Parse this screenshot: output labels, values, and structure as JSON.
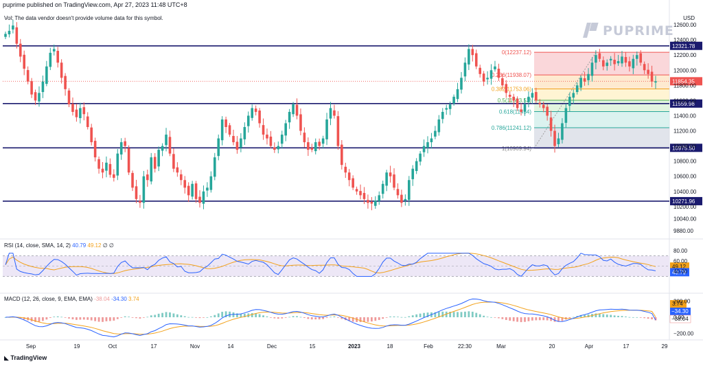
{
  "header": {
    "published": "puprime published on TradingView.com, Apr 27, 2023 11:48 UTC+8"
  },
  "volume_note": "Vol: The data vendor doesn't provide volume data for this symbol.",
  "currency": "USD",
  "brand": {
    "watermark": "PUPRIME",
    "footer": "TradingView"
  },
  "rsi_label": {
    "text": "RSI (14, close, SMA, 14, 2)",
    "rsi": "40.79",
    "sma": "49.12",
    "extra": "∅ ∅"
  },
  "macd_label": {
    "text": "MACD (12, 26, close, 9, EMA, EMA)",
    "hist": "-38.04",
    "macd": "-34.30",
    "signal": "3.74"
  },
  "colors": {
    "up": "#26a69a",
    "down": "#ef5350",
    "level_line": "#1a1a6e",
    "rsi_line": "#2962ff",
    "rsi_sma": "#f2a11a",
    "rsi_band": "#ede7f6",
    "price_tag": "#ef5350",
    "macd_tag": "#2962ff",
    "signal_tag": "#f2a11a"
  },
  "chart_data": {
    "type": "candlestick",
    "symbol_currency": "USD",
    "price_axis": {
      "range": [
        9800,
        12800
      ],
      "ticks": [
        12600,
        12400,
        12200,
        12000,
        11800,
        11600,
        11400,
        11200,
        11000,
        10800,
        10600,
        10400,
        10200,
        10040,
        9880
      ]
    },
    "x_axis": {
      "ticks": [
        "Sep",
        "19",
        "Oct",
        "17",
        "Nov",
        "14",
        "Dec",
        "15",
        "2023",
        "18",
        "Feb",
        "22:30",
        "Mar",
        "20",
        "Apr",
        "17",
        "29"
      ]
    },
    "horizontal_levels": [
      12321.78,
      11559.98,
      10975.5,
      10271.96
    ],
    "level_labels": [
      "12321.78",
      "11559.98",
      "10975.50",
      "10271.96"
    ],
    "current_price": 11854.35,
    "current_price_label": "11854.35",
    "fibonacci": {
      "start": 12237.12,
      "end": 10969.94,
      "levels": [
        {
          "ratio": "0",
          "label": "0(12237.12)",
          "value": 12237.12
        },
        {
          "ratio": "0.236",
          "label": "0.236(11938.07)",
          "value": 11938.07
        },
        {
          "ratio": "0.382",
          "label": "0.382(11753.06)",
          "value": 11753.06
        },
        {
          "ratio": "0.5",
          "label": "0.5(11603.53)",
          "value": 11603.53
        },
        {
          "ratio": "0.618",
          "label": "0.618(11454)",
          "value": 11454.0
        },
        {
          "ratio": "0.786",
          "label": "0.786(11241.12)",
          "value": 11241.12
        },
        {
          "ratio": "1",
          "label": "1(10969.94)",
          "value": 10969.94
        }
      ]
    },
    "price_path": [
      12480,
      12520,
      12590,
      12350,
      12180,
      12020,
      11850,
      11680,
      11600,
      11700,
      11850,
      12050,
      12230,
      12280,
      12100,
      11900,
      11750,
      11550,
      11450,
      11380,
      11500,
      11420,
      11250,
      11050,
      10850,
      10700,
      10650,
      10780,
      10620,
      10580,
      10900,
      11050,
      11000,
      10650,
      10450,
      10300,
      10250,
      10600,
      10550,
      10850,
      10700,
      10950,
      11000,
      11150,
      10900,
      10700,
      10650,
      10550,
      10450,
      10350,
      10500,
      10300,
      10250,
      10400,
      10450,
      10600,
      10850,
      11100,
      11350,
      11250,
      11150,
      11050,
      10950,
      11100,
      11250,
      11400,
      11500,
      11450,
      11300,
      11150,
      11100,
      11000,
      10950,
      11000,
      11150,
      11300,
      11450,
      11550,
      11400,
      11200,
      11050,
      10950,
      10950,
      11050,
      11000,
      11100,
      11350,
      11500,
      11400,
      11000,
      10750,
      10650,
      10550,
      10450,
      10400,
      10350,
      10300,
      10250,
      10240,
      10280,
      10350,
      10500,
      10650,
      10600,
      10450,
      10350,
      10250,
      10300,
      10550,
      10700,
      10800,
      10900,
      11000,
      11050,
      11100,
      11200,
      11350,
      11450,
      11500,
      11550,
      11650,
      11750,
      11900,
      12100,
      12280,
      12200,
      12050,
      11950,
      11850,
      11900,
      12000,
      12050,
      11900,
      11800,
      11700,
      11650,
      11600,
      11500,
      11450,
      11550,
      11650,
      11700,
      11600,
      11550,
      11500,
      11400,
      11200,
      11000,
      11100,
      11300,
      11500,
      11650,
      11700,
      11800,
      11900,
      11850,
      11950,
      12100,
      12200,
      12150,
      12050,
      12100,
      12150,
      12080,
      12120,
      12180,
      12100,
      12050,
      12150,
      12200,
      12100,
      12000,
      11950,
      11850,
      11854
    ],
    "rsi": {
      "range": [
        0,
        100
      ],
      "ticks": [
        80,
        60,
        40
      ],
      "band": [
        30,
        70
      ],
      "last_rsi": 40.79,
      "last_sma": 49.12
    },
    "macd": {
      "ticks": [
        200,
        0,
        -200
      ],
      "last_macd": -34.3,
      "last_signal": 3.74,
      "last_hist": -38.04
    }
  }
}
